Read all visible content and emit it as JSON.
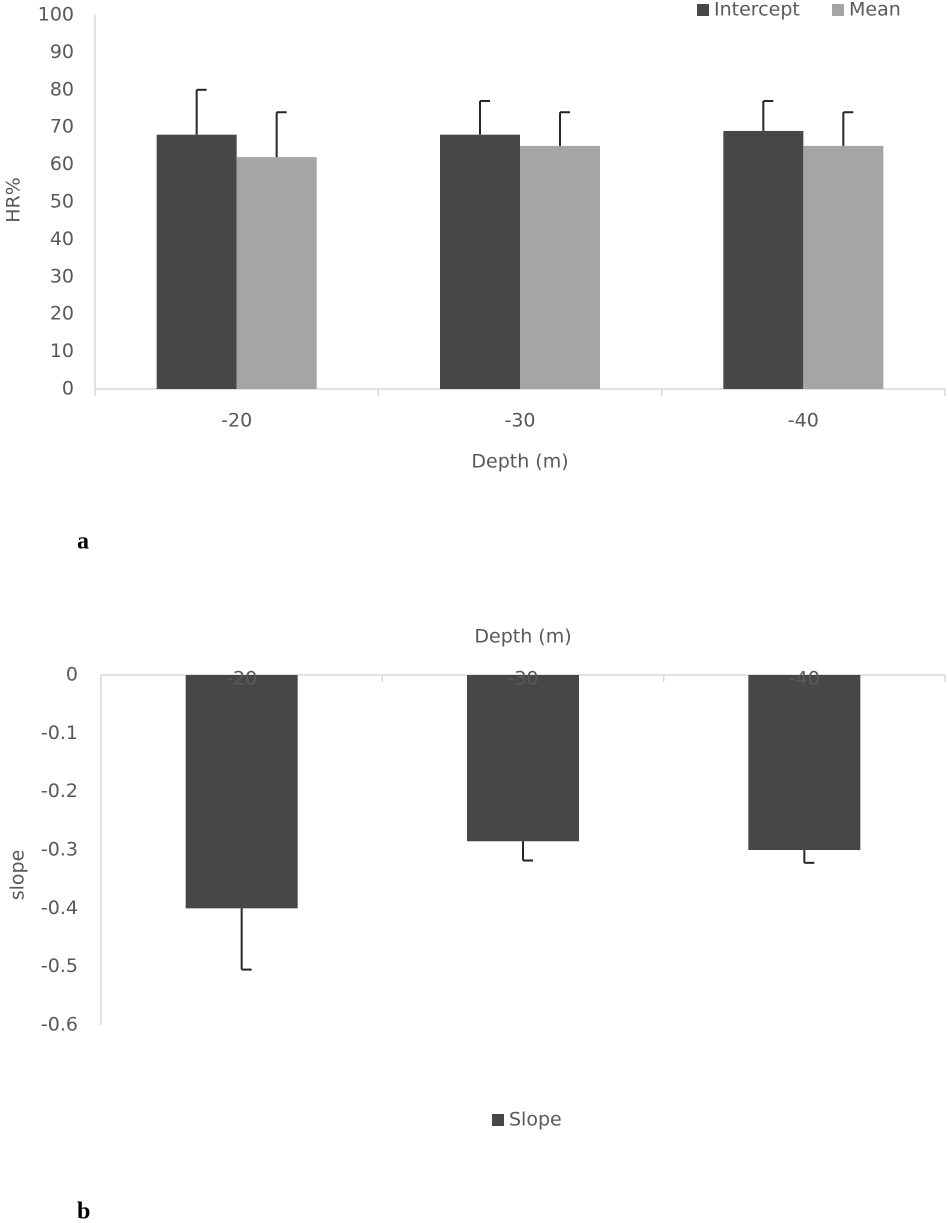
{
  "chart_data": [
    {
      "type": "bar",
      "panel_label": "a",
      "x_label": "Depth (m)",
      "y_label": "HR%",
      "categories": [
        "-20",
        "-30",
        "-40"
      ],
      "series": [
        {
          "name": "Intercept",
          "color": "#474747",
          "values": [
            68,
            68,
            69
          ],
          "errors": [
            12,
            9,
            8
          ]
        },
        {
          "name": "Mean",
          "color": "#a5a5a5",
          "values": [
            62,
            65,
            65
          ],
          "errors": [
            12,
            9,
            9
          ]
        }
      ],
      "ylim": [
        0,
        100
      ],
      "yticks": [
        0,
        10,
        20,
        30,
        40,
        50,
        60,
        70,
        80,
        90,
        100
      ],
      "legend": "top-right"
    },
    {
      "type": "bar",
      "panel_label": "b",
      "x_label": "Depth (m)",
      "y_label": "slope",
      "categories": [
        "-20",
        "-30",
        "-40"
      ],
      "series": [
        {
          "name": "Slope",
          "color": "#474747",
          "values": [
            -0.4,
            -0.285,
            -0.3
          ],
          "errors": [
            0.105,
            0.033,
            0.022
          ]
        }
      ],
      "ylim": [
        -0.6,
        0
      ],
      "yticks": [
        0,
        -0.1,
        -0.2,
        -0.3,
        -0.4,
        -0.5,
        -0.6
      ],
      "legend": "bottom"
    }
  ]
}
